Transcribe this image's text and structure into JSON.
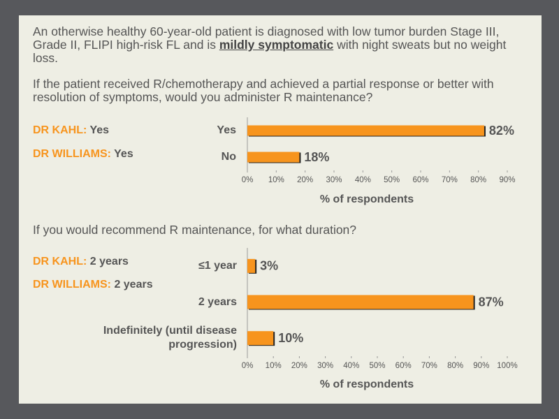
{
  "intro": {
    "before": "An otherwise healthy 60-year-old patient is diagnosed with low tumor burden Stage III, Grade II, FLIPI high-risk FL and is",
    "emphasis": "mildly symptomatic",
    "after": "with night sweats but no weight loss."
  },
  "chart_data": [
    {
      "type": "bar",
      "orientation": "horizontal",
      "title": "If the patient received R/chemotherapy and achieved a partial response or better with resolution of symptoms, would you administer R maintenance?",
      "categories": [
        "Yes",
        "No"
      ],
      "values": [
        82,
        18
      ],
      "value_labels": [
        "82%",
        "18%"
      ],
      "color": "#f7941d",
      "xlim": [
        0,
        90
      ],
      "xticks": [
        {
          "value": 0,
          "label": "0%"
        },
        {
          "value": 10,
          "label": "10%"
        },
        {
          "value": 20,
          "label": "20%"
        },
        {
          "value": 30,
          "label": "30%"
        },
        {
          "value": 40,
          "label": "40%"
        },
        {
          "value": 50,
          "label": "50%"
        },
        {
          "value": 60,
          "label": "60%"
        },
        {
          "value": 70,
          "label": "70%"
        },
        {
          "value": 80,
          "label": "80%"
        },
        {
          "value": 90,
          "label": "90%"
        }
      ],
      "xlabel": "% of respondents",
      "notes": [
        {
          "label": "DR KAHL:",
          "text": "Yes"
        },
        {
          "label": "DR WILLIAMS:",
          "text": "Yes"
        }
      ]
    },
    {
      "type": "bar",
      "orientation": "horizontal",
      "title": "If you would recommend R maintenance, for what duration?",
      "categories": [
        "≤1 year",
        "2 years",
        "Indefinitely (until disease progression)"
      ],
      "values": [
        3,
        87,
        10
      ],
      "value_labels": [
        "3%",
        "87%",
        "10%"
      ],
      "color": "#f7941d",
      "xlim": [
        0,
        100
      ],
      "xticks": [
        {
          "value": 0,
          "label": "0%"
        },
        {
          "value": 10,
          "label": "10%"
        },
        {
          "value": 20,
          "label": "20%"
        },
        {
          "value": 30,
          "label": "30%"
        },
        {
          "value": 40,
          "label": "40%"
        },
        {
          "value": 50,
          "label": "50%"
        },
        {
          "value": 60,
          "label": "60%"
        },
        {
          "value": 70,
          "label": "70%"
        },
        {
          "value": 80,
          "label": "80%"
        },
        {
          "value": 90,
          "label": "90%"
        },
        {
          "value": 100,
          "label": "100%"
        }
      ],
      "xlabel": "% of respondents",
      "notes": [
        {
          "label": "DR KAHL:",
          "text": "2 years"
        },
        {
          "label": "DR WILLIAMS:",
          "text": "2 years"
        }
      ]
    }
  ]
}
